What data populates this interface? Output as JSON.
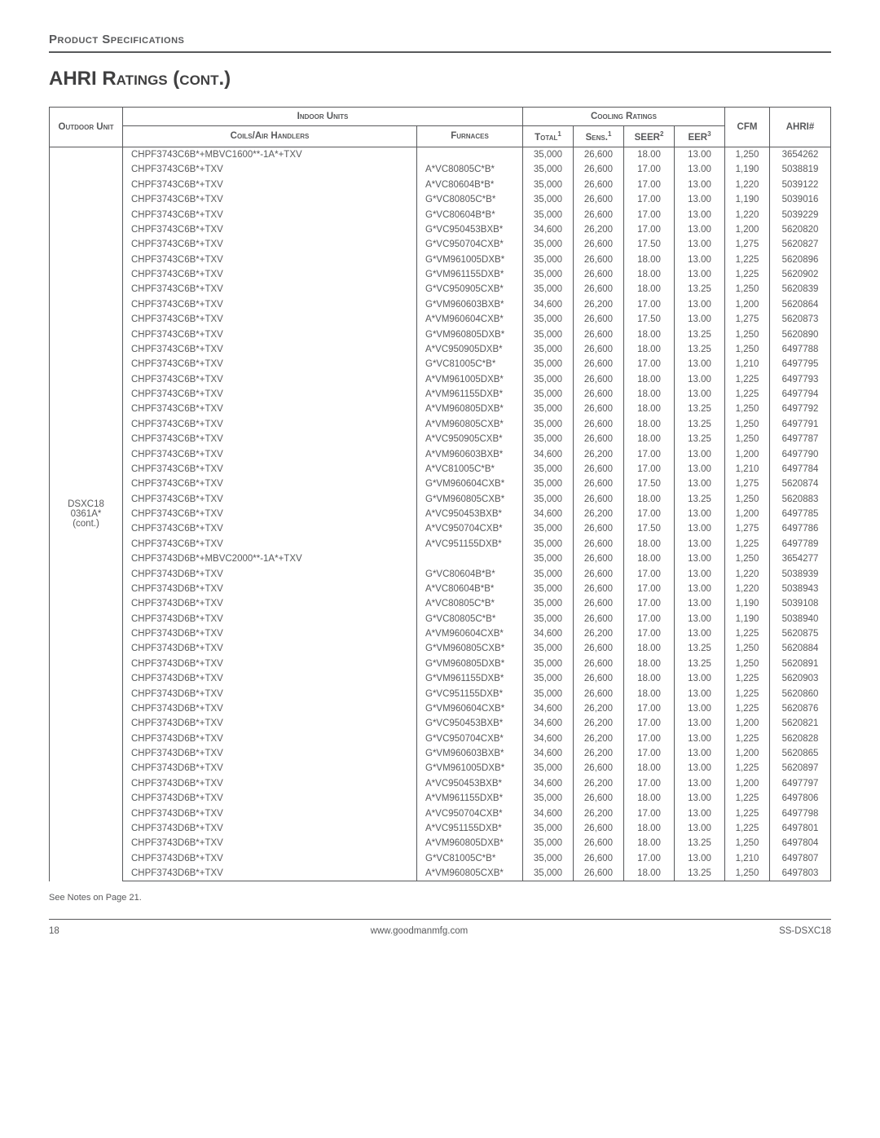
{
  "header": {
    "section_label": "Product Specifications",
    "title": "AHRI Ratings (cont.)"
  },
  "table": {
    "head": {
      "outdoor": "Outdoor Unit",
      "indoor": "Indoor Units",
      "cooling": "Cooling Ratings",
      "coils": "Coils/Air Handlers",
      "furnaces": "Furnaces",
      "total": "Total",
      "sens": "Sens.",
      "seer": "SEER",
      "eer": "EER",
      "cfm": "CFM",
      "ahri": "AHRI#"
    },
    "outdoor_unit": "DSXC18 0361A* (cont.)",
    "rows": [
      {
        "coil": "CHPF3743C6B*+MBVC1600**-1A*+TXV",
        "furnace": "",
        "total": "35,000",
        "sens": "26,600",
        "seer": "18.00",
        "eer": "13.00",
        "cfm": "1,250",
        "ahri": "3654262"
      },
      {
        "coil": "CHPF3743C6B*+TXV",
        "furnace": "A*VC80805C*B*",
        "total": "35,000",
        "sens": "26,600",
        "seer": "17.00",
        "eer": "13.00",
        "cfm": "1,190",
        "ahri": "5038819"
      },
      {
        "coil": "CHPF3743C6B*+TXV",
        "furnace": "A*VC80604B*B*",
        "total": "35,000",
        "sens": "26,600",
        "seer": "17.00",
        "eer": "13.00",
        "cfm": "1,220",
        "ahri": "5039122"
      },
      {
        "coil": "CHPF3743C6B*+TXV",
        "furnace": "G*VC80805C*B*",
        "total": "35,000",
        "sens": "26,600",
        "seer": "17.00",
        "eer": "13.00",
        "cfm": "1,190",
        "ahri": "5039016"
      },
      {
        "coil": "CHPF3743C6B*+TXV",
        "furnace": "G*VC80604B*B*",
        "total": "35,000",
        "sens": "26,600",
        "seer": "17.00",
        "eer": "13.00",
        "cfm": "1,220",
        "ahri": "5039229"
      },
      {
        "coil": "CHPF3743C6B*+TXV",
        "furnace": "G*VC950453BXB*",
        "total": "34,600",
        "sens": "26,200",
        "seer": "17.00",
        "eer": "13.00",
        "cfm": "1,200",
        "ahri": "5620820"
      },
      {
        "coil": "CHPF3743C6B*+TXV",
        "furnace": "G*VC950704CXB*",
        "total": "35,000",
        "sens": "26,600",
        "seer": "17.50",
        "eer": "13.00",
        "cfm": "1,275",
        "ahri": "5620827"
      },
      {
        "coil": "CHPF3743C6B*+TXV",
        "furnace": "G*VM961005DXB*",
        "total": "35,000",
        "sens": "26,600",
        "seer": "18.00",
        "eer": "13.00",
        "cfm": "1,225",
        "ahri": "5620896"
      },
      {
        "coil": "CHPF3743C6B*+TXV",
        "furnace": "G*VM961155DXB*",
        "total": "35,000",
        "sens": "26,600",
        "seer": "18.00",
        "eer": "13.00",
        "cfm": "1,225",
        "ahri": "5620902"
      },
      {
        "coil": "CHPF3743C6B*+TXV",
        "furnace": "G*VC950905CXB*",
        "total": "35,000",
        "sens": "26,600",
        "seer": "18.00",
        "eer": "13.25",
        "cfm": "1,250",
        "ahri": "5620839"
      },
      {
        "coil": "CHPF3743C6B*+TXV",
        "furnace": "G*VM960603BXB*",
        "total": "34,600",
        "sens": "26,200",
        "seer": "17.00",
        "eer": "13.00",
        "cfm": "1,200",
        "ahri": "5620864"
      },
      {
        "coil": "CHPF3743C6B*+TXV",
        "furnace": "A*VM960604CXB*",
        "total": "35,000",
        "sens": "26,600",
        "seer": "17.50",
        "eer": "13.00",
        "cfm": "1,275",
        "ahri": "5620873"
      },
      {
        "coil": "CHPF3743C6B*+TXV",
        "furnace": "G*VM960805DXB*",
        "total": "35,000",
        "sens": "26,600",
        "seer": "18.00",
        "eer": "13.25",
        "cfm": "1,250",
        "ahri": "5620890"
      },
      {
        "coil": "CHPF3743C6B*+TXV",
        "furnace": "A*VC950905DXB*",
        "total": "35,000",
        "sens": "26,600",
        "seer": "18.00",
        "eer": "13.25",
        "cfm": "1,250",
        "ahri": "6497788"
      },
      {
        "coil": "CHPF3743C6B*+TXV",
        "furnace": "G*VC81005C*B*",
        "total": "35,000",
        "sens": "26,600",
        "seer": "17.00",
        "eer": "13.00",
        "cfm": "1,210",
        "ahri": "6497795"
      },
      {
        "coil": "CHPF3743C6B*+TXV",
        "furnace": "A*VM961005DXB*",
        "total": "35,000",
        "sens": "26,600",
        "seer": "18.00",
        "eer": "13.00",
        "cfm": "1,225",
        "ahri": "6497793"
      },
      {
        "coil": "CHPF3743C6B*+TXV",
        "furnace": "A*VM961155DXB*",
        "total": "35,000",
        "sens": "26,600",
        "seer": "18.00",
        "eer": "13.00",
        "cfm": "1,225",
        "ahri": "6497794"
      },
      {
        "coil": "CHPF3743C6B*+TXV",
        "furnace": "A*VM960805DXB*",
        "total": "35,000",
        "sens": "26,600",
        "seer": "18.00",
        "eer": "13.25",
        "cfm": "1,250",
        "ahri": "6497792"
      },
      {
        "coil": "CHPF3743C6B*+TXV",
        "furnace": "A*VM960805CXB*",
        "total": "35,000",
        "sens": "26,600",
        "seer": "18.00",
        "eer": "13.25",
        "cfm": "1,250",
        "ahri": "6497791"
      },
      {
        "coil": "CHPF3743C6B*+TXV",
        "furnace": "A*VC950905CXB*",
        "total": "35,000",
        "sens": "26,600",
        "seer": "18.00",
        "eer": "13.25",
        "cfm": "1,250",
        "ahri": "6497787"
      },
      {
        "coil": "CHPF3743C6B*+TXV",
        "furnace": "A*VM960603BXB*",
        "total": "34,600",
        "sens": "26,200",
        "seer": "17.00",
        "eer": "13.00",
        "cfm": "1,200",
        "ahri": "6497790"
      },
      {
        "coil": "CHPF3743C6B*+TXV",
        "furnace": "A*VC81005C*B*",
        "total": "35,000",
        "sens": "26,600",
        "seer": "17.00",
        "eer": "13.00",
        "cfm": "1,210",
        "ahri": "6497784"
      },
      {
        "coil": "CHPF3743C6B*+TXV",
        "furnace": "G*VM960604CXB*",
        "total": "35,000",
        "sens": "26,600",
        "seer": "17.50",
        "eer": "13.00",
        "cfm": "1,275",
        "ahri": "5620874"
      },
      {
        "coil": "CHPF3743C6B*+TXV",
        "furnace": "G*VM960805CXB*",
        "total": "35,000",
        "sens": "26,600",
        "seer": "18.00",
        "eer": "13.25",
        "cfm": "1,250",
        "ahri": "5620883"
      },
      {
        "coil": "CHPF3743C6B*+TXV",
        "furnace": "A*VC950453BXB*",
        "total": "34,600",
        "sens": "26,200",
        "seer": "17.00",
        "eer": "13.00",
        "cfm": "1,200",
        "ahri": "6497785"
      },
      {
        "coil": "CHPF3743C6B*+TXV",
        "furnace": "A*VC950704CXB*",
        "total": "35,000",
        "sens": "26,600",
        "seer": "17.50",
        "eer": "13.00",
        "cfm": "1,275",
        "ahri": "6497786"
      },
      {
        "coil": "CHPF3743C6B*+TXV",
        "furnace": "A*VC951155DXB*",
        "total": "35,000",
        "sens": "26,600",
        "seer": "18.00",
        "eer": "13.00",
        "cfm": "1,225",
        "ahri": "6497789"
      },
      {
        "coil": "CHPF3743D6B*+MBVC2000**-1A*+TXV",
        "furnace": "",
        "total": "35,000",
        "sens": "26,600",
        "seer": "18.00",
        "eer": "13.00",
        "cfm": "1,250",
        "ahri": "3654277"
      },
      {
        "coil": "CHPF3743D6B*+TXV",
        "furnace": "G*VC80604B*B*",
        "total": "35,000",
        "sens": "26,600",
        "seer": "17.00",
        "eer": "13.00",
        "cfm": "1,220",
        "ahri": "5038939"
      },
      {
        "coil": "CHPF3743D6B*+TXV",
        "furnace": "A*VC80604B*B*",
        "total": "35,000",
        "sens": "26,600",
        "seer": "17.00",
        "eer": "13.00",
        "cfm": "1,220",
        "ahri": "5038943"
      },
      {
        "coil": "CHPF3743D6B*+TXV",
        "furnace": "A*VC80805C*B*",
        "total": "35,000",
        "sens": "26,600",
        "seer": "17.00",
        "eer": "13.00",
        "cfm": "1,190",
        "ahri": "5039108"
      },
      {
        "coil": "CHPF3743D6B*+TXV",
        "furnace": "G*VC80805C*B*",
        "total": "35,000",
        "sens": "26,600",
        "seer": "17.00",
        "eer": "13.00",
        "cfm": "1,190",
        "ahri": "5038940"
      },
      {
        "coil": "CHPF3743D6B*+TXV",
        "furnace": "A*VM960604CXB*",
        "total": "34,600",
        "sens": "26,200",
        "seer": "17.00",
        "eer": "13.00",
        "cfm": "1,225",
        "ahri": "5620875"
      },
      {
        "coil": "CHPF3743D6B*+TXV",
        "furnace": "G*VM960805CXB*",
        "total": "35,000",
        "sens": "26,600",
        "seer": "18.00",
        "eer": "13.25",
        "cfm": "1,250",
        "ahri": "5620884"
      },
      {
        "coil": "CHPF3743D6B*+TXV",
        "furnace": "G*VM960805DXB*",
        "total": "35,000",
        "sens": "26,600",
        "seer": "18.00",
        "eer": "13.25",
        "cfm": "1,250",
        "ahri": "5620891"
      },
      {
        "coil": "CHPF3743D6B*+TXV",
        "furnace": "G*VM961155DXB*",
        "total": "35,000",
        "sens": "26,600",
        "seer": "18.00",
        "eer": "13.00",
        "cfm": "1,225",
        "ahri": "5620903"
      },
      {
        "coil": "CHPF3743D6B*+TXV",
        "furnace": "G*VC951155DXB*",
        "total": "35,000",
        "sens": "26,600",
        "seer": "18.00",
        "eer": "13.00",
        "cfm": "1,225",
        "ahri": "5620860"
      },
      {
        "coil": "CHPF3743D6B*+TXV",
        "furnace": "G*VM960604CXB*",
        "total": "34,600",
        "sens": "26,200",
        "seer": "17.00",
        "eer": "13.00",
        "cfm": "1,225",
        "ahri": "5620876"
      },
      {
        "coil": "CHPF3743D6B*+TXV",
        "furnace": "G*VC950453BXB*",
        "total": "34,600",
        "sens": "26,200",
        "seer": "17.00",
        "eer": "13.00",
        "cfm": "1,200",
        "ahri": "5620821"
      },
      {
        "coil": "CHPF3743D6B*+TXV",
        "furnace": "G*VC950704CXB*",
        "total": "34,600",
        "sens": "26,200",
        "seer": "17.00",
        "eer": "13.00",
        "cfm": "1,225",
        "ahri": "5620828"
      },
      {
        "coil": "CHPF3743D6B*+TXV",
        "furnace": "G*VM960603BXB*",
        "total": "34,600",
        "sens": "26,200",
        "seer": "17.00",
        "eer": "13.00",
        "cfm": "1,200",
        "ahri": "5620865"
      },
      {
        "coil": "CHPF3743D6B*+TXV",
        "furnace": "G*VM961005DXB*",
        "total": "35,000",
        "sens": "26,600",
        "seer": "18.00",
        "eer": "13.00",
        "cfm": "1,225",
        "ahri": "5620897"
      },
      {
        "coil": "CHPF3743D6B*+TXV",
        "furnace": "A*VC950453BXB*",
        "total": "34,600",
        "sens": "26,200",
        "seer": "17.00",
        "eer": "13.00",
        "cfm": "1,200",
        "ahri": "6497797"
      },
      {
        "coil": "CHPF3743D6B*+TXV",
        "furnace": "A*VM961155DXB*",
        "total": "35,000",
        "sens": "26,600",
        "seer": "18.00",
        "eer": "13.00",
        "cfm": "1,225",
        "ahri": "6497806"
      },
      {
        "coil": "CHPF3743D6B*+TXV",
        "furnace": "A*VC950704CXB*",
        "total": "34,600",
        "sens": "26,200",
        "seer": "17.00",
        "eer": "13.00",
        "cfm": "1,225",
        "ahri": "6497798"
      },
      {
        "coil": "CHPF3743D6B*+TXV",
        "furnace": "A*VC951155DXB*",
        "total": "35,000",
        "sens": "26,600",
        "seer": "18.00",
        "eer": "13.00",
        "cfm": "1,225",
        "ahri": "6497801"
      },
      {
        "coil": "CHPF3743D6B*+TXV",
        "furnace": "A*VM960805DXB*",
        "total": "35,000",
        "sens": "26,600",
        "seer": "18.00",
        "eer": "13.25",
        "cfm": "1,250",
        "ahri": "6497804"
      },
      {
        "coil": "CHPF3743D6B*+TXV",
        "furnace": "G*VC81005C*B*",
        "total": "35,000",
        "sens": "26,600",
        "seer": "17.00",
        "eer": "13.00",
        "cfm": "1,210",
        "ahri": "6497807"
      },
      {
        "coil": "CHPF3743D6B*+TXV",
        "furnace": "A*VM960805CXB*",
        "total": "35,000",
        "sens": "26,600",
        "seer": "18.00",
        "eer": "13.25",
        "cfm": "1,250",
        "ahri": "6497803"
      }
    ]
  },
  "notes": "See Notes on Page 21.",
  "footer": {
    "page": "18",
    "url": "www.goodmanmfg.com",
    "doc": "SS-DSXC18"
  }
}
